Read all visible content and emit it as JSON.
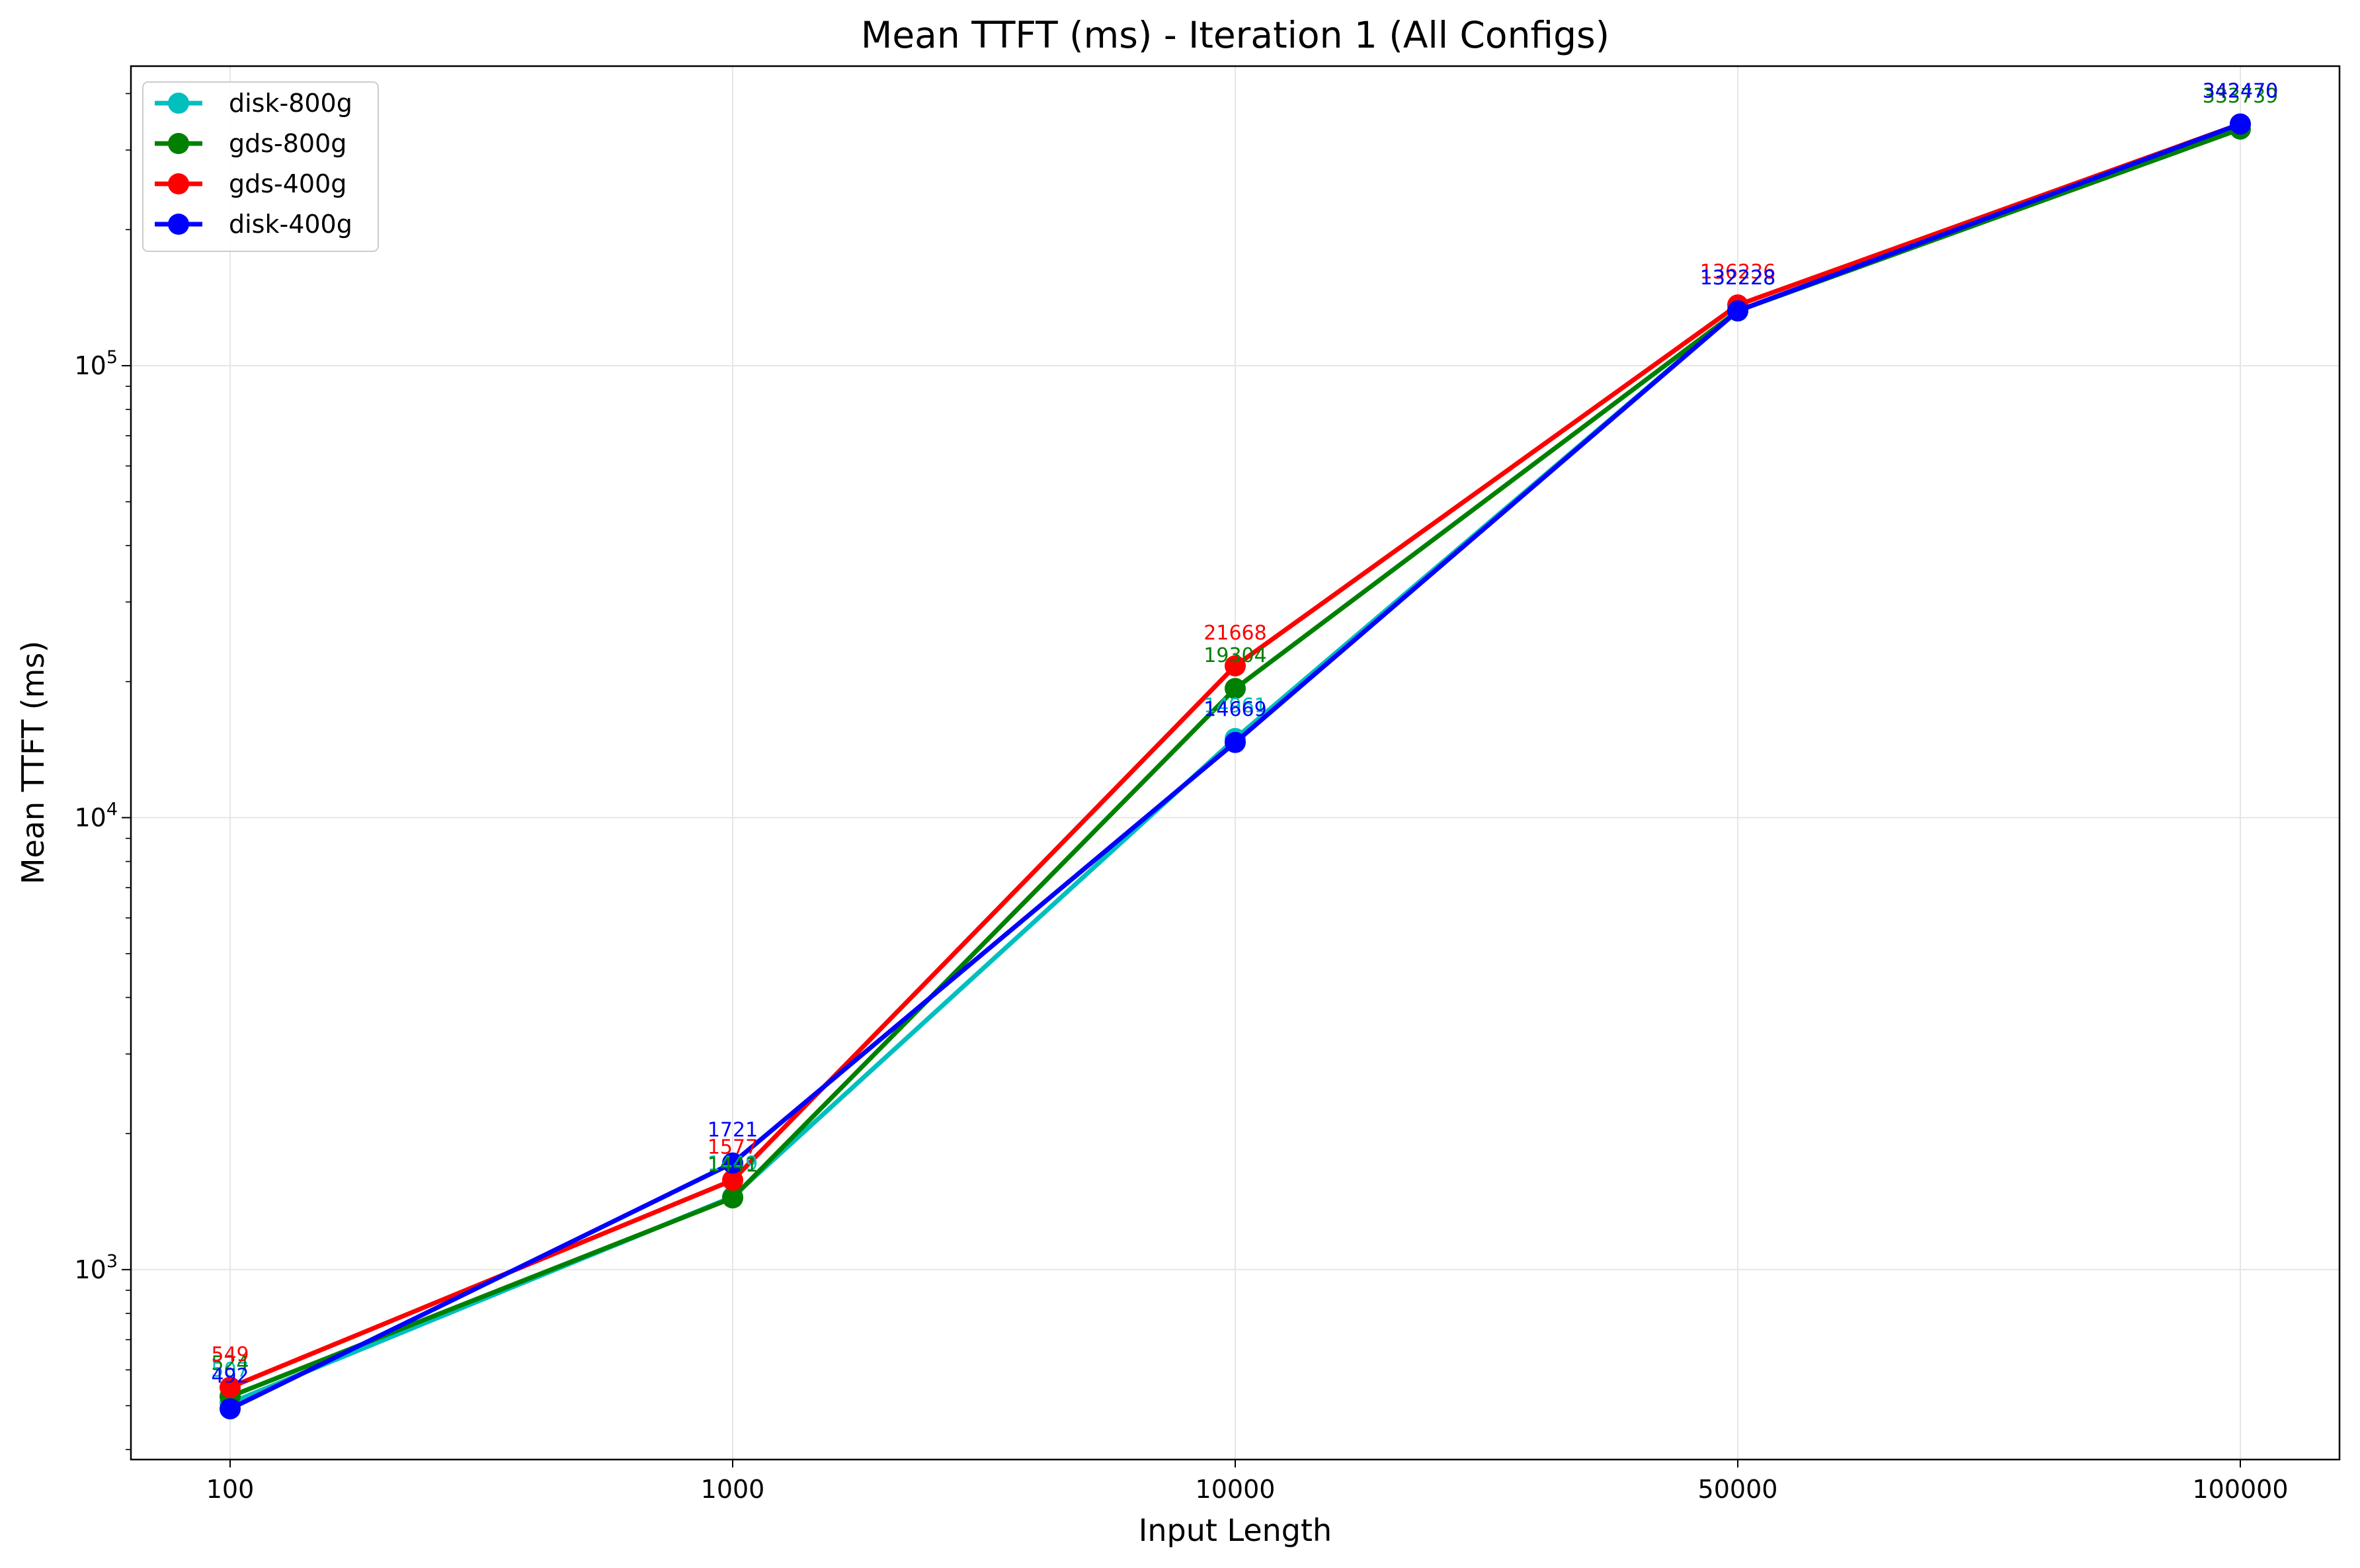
{
  "chart_data": {
    "type": "line",
    "title": "Mean TTFT (ms) - Iteration 1 (All Configs)",
    "xlabel": "Input Length",
    "ylabel": "Mean TTFT (ms)",
    "categories": [
      "100",
      "1000",
      "10000",
      "50000",
      "100000"
    ],
    "y_scale": "log",
    "ylim": [
      380,
      460000
    ],
    "y_ticks": [
      1000,
      10000,
      100000
    ],
    "y_tick_labels": [
      {
        "base": "10",
        "exp": "3"
      },
      {
        "base": "10",
        "exp": "4"
      },
      {
        "base": "10",
        "exp": "5"
      }
    ],
    "grid": true,
    "legend": "top-left",
    "series": [
      {
        "name": "disk-800g",
        "color": "#00bfbf",
        "values": [
          507,
          1449,
          14961,
          132228,
          342470
        ]
      },
      {
        "name": "gds-800g",
        "color": "#008000",
        "values": [
          524,
          1441,
          19304,
          132228,
          333739
        ]
      },
      {
        "name": "gds-400g",
        "color": "#ff0000",
        "values": [
          549,
          1577,
          21668,
          136236,
          342470
        ]
      },
      {
        "name": "disk-400g",
        "color": "#0000ff",
        "values": [
          492,
          1721,
          14669,
          132228,
          342470
        ]
      }
    ],
    "data_labels": [
      [
        "507",
        "1449",
        "14961",
        "132228",
        "342470"
      ],
      [
        "524",
        "1441",
        "19304",
        "132228",
        "333739"
      ],
      [
        "549",
        "1577",
        "21668",
        "136236",
        "342470"
      ],
      [
        "492",
        "1721",
        "14669",
        "132228",
        "342470"
      ]
    ]
  }
}
